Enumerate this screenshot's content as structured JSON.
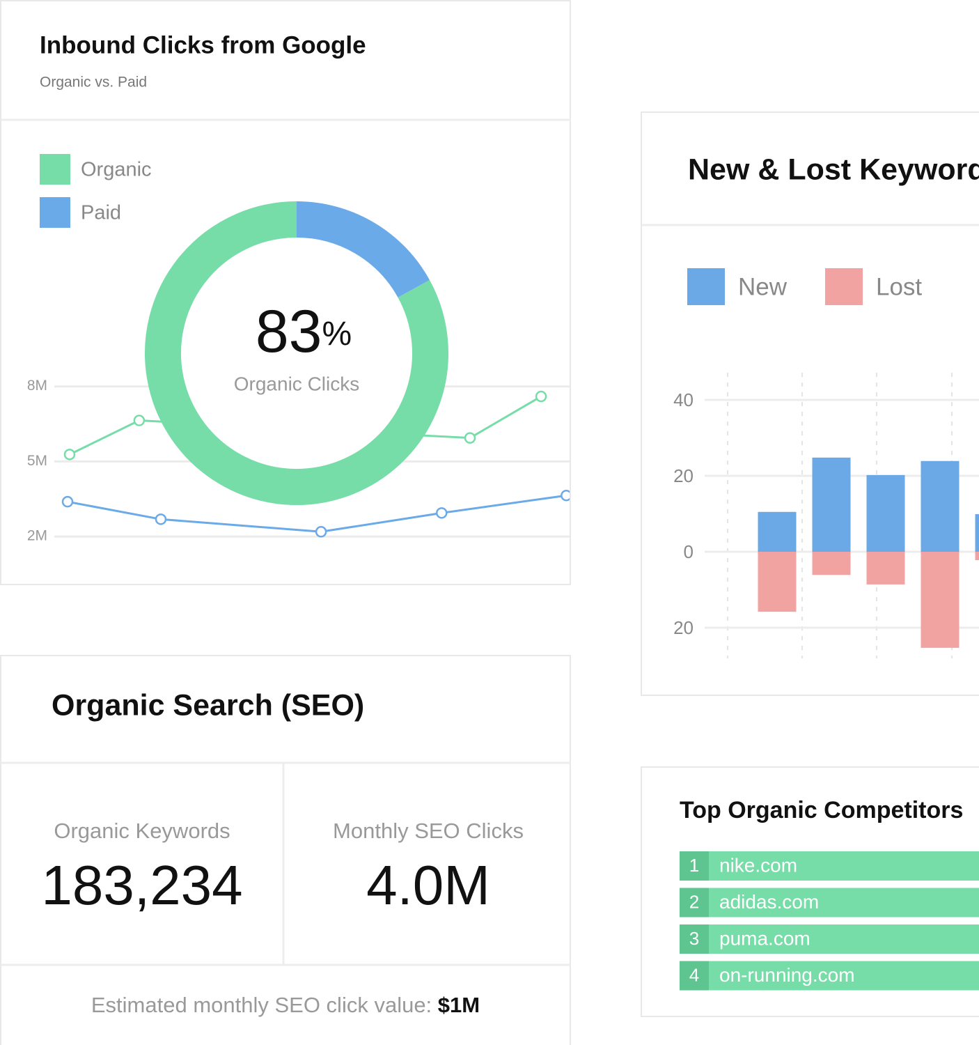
{
  "chart_data": [
    {
      "type": "pie",
      "title": "Inbound Clicks from Google",
      "subtitle": "Organic vs. Paid",
      "categories": [
        "Organic",
        "Paid"
      ],
      "values": [
        83,
        17
      ],
      "colors": [
        "#77dda8",
        "#6aaae8"
      ],
      "center_unit": "%",
      "center_label": "Organic Clicks"
    },
    {
      "type": "line",
      "xlim": [
        0,
        10
      ],
      "ylim": [
        1200000,
        9000000
      ],
      "yticks": [
        {
          "value": 8000000,
          "label": "8M"
        },
        {
          "value": 5000000,
          "label": "5M"
        },
        {
          "value": 2000000,
          "label": "2M"
        }
      ],
      "grid": true,
      "series": [
        {
          "color": "#77dda8",
          "x": [
            0.27,
            1.62,
            8.04,
            9.42
          ],
          "values": [
            5280000,
            6640000,
            5940000,
            7600000
          ]
        },
        {
          "color": "#6aaae8",
          "x": [
            0.23,
            2.04,
            5.15,
            7.49,
            9.91
          ],
          "values": [
            3390000,
            2690000,
            2190000,
            2940000,
            3640000
          ]
        }
      ]
    },
    {
      "type": "bar",
      "title": "New & Lost Keywords",
      "categories": [
        null,
        null,
        null,
        null,
        null
      ],
      "series": [
        {
          "name": "New",
          "color": "#6aa9e6",
          "values": [
            10.5,
            24.8,
            20.2,
            23.9,
            9.9
          ]
        },
        {
          "name": "Lost",
          "color": "#f0a3a0",
          "values": [
            -15.8,
            -6.1,
            -8.6,
            -25.3,
            -2.2
          ]
        }
      ],
      "ylim": [
        -27,
        47
      ],
      "yticks": [
        40,
        20,
        0,
        {
          "value": -20,
          "label": "20"
        }
      ],
      "grid": true
    }
  ],
  "seo_card": {
    "title": "Organic Search (SEO)",
    "metrics": [
      {
        "label": "Organic Keywords",
        "value": "183,234"
      },
      {
        "label": "Monthly SEO Clicks",
        "value": "4.0M"
      }
    ],
    "footer": {
      "label": "Estimated monthly SEO click value: ",
      "value": "$1M"
    }
  },
  "competitors": {
    "title": "Top Organic Competitors",
    "rows": [
      {
        "rank": 1,
        "domain": "nike.com"
      },
      {
        "rank": 2,
        "domain": "adidas.com"
      },
      {
        "rank": 3,
        "domain": "puma.com"
      },
      {
        "rank": 4,
        "domain": "on-running.com"
      }
    ]
  }
}
